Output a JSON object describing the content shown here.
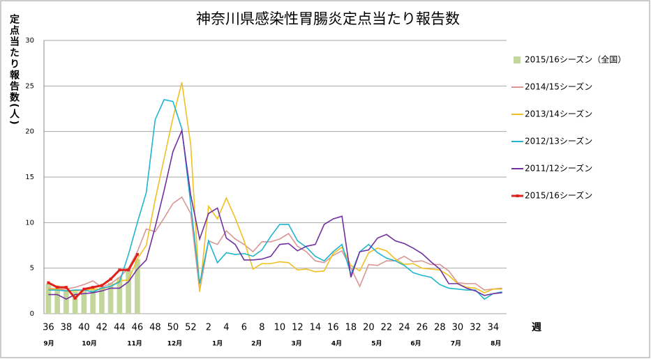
{
  "chart_data": {
    "type": "line",
    "title": "神奈川県感染性胃腸炎定点当たり報告数",
    "y_label": "定点当たり報告数(人)",
    "x_label": "週",
    "categories": [
      "36",
      null,
      "38",
      null,
      "40",
      null,
      "42",
      null,
      "44",
      null,
      "46",
      null,
      "48",
      null,
      "50",
      null,
      "52",
      null,
      "2",
      null,
      "4",
      null,
      "6",
      null,
      "8",
      null,
      "10",
      null,
      "12",
      null,
      "14",
      null,
      "16",
      null,
      "18",
      null,
      "20",
      null,
      "22",
      null,
      "24",
      null,
      "26",
      null,
      "28",
      null,
      "30",
      null,
      "32",
      null,
      "34",
      null
    ],
    "months": [
      "9月",
      "10月",
      "11月",
      "12月",
      "1月",
      "2月",
      "3月",
      "4月",
      "5月",
      "6月",
      "7月",
      "8月"
    ],
    "ylim": [
      0,
      30
    ],
    "yticks": [
      0,
      5,
      10,
      15,
      20,
      25,
      30
    ],
    "grid": true,
    "legend": "right",
    "series": [
      {
        "name": "2015/16シーズン（全国）",
        "type": "bar",
        "color": "#c3d69b",
        "values": [
          3.3,
          3.1,
          2.6,
          2.4,
          2.5,
          2.7,
          2.9,
          3.4,
          4.0,
          5.0,
          6.0,
          null,
          null,
          null,
          null,
          null,
          null,
          null,
          null,
          null,
          null,
          null,
          null,
          null,
          null,
          null,
          null,
          null,
          null,
          null,
          null,
          null,
          null,
          null,
          null,
          null,
          null,
          null,
          null,
          null,
          null,
          null,
          null,
          null,
          null,
          null,
          null,
          null,
          null,
          null,
          null,
          null
        ]
      },
      {
        "name": "2014/15シーズン",
        "type": "line",
        "color": "#d99694",
        "values": [
          2.8,
          2.7,
          2.7,
          2.9,
          3.2,
          3.6,
          2.9,
          3.3,
          4.0,
          5.0,
          6.8,
          9.3,
          9.0,
          10.5,
          12.1,
          12.8,
          11.0,
          2.5,
          8.0,
          7.6,
          9.1,
          8.2,
          7.6,
          6.8,
          7.9,
          7.9,
          8.2,
          8.8,
          7.4,
          6.8,
          5.8,
          5.6,
          6.4,
          6.9,
          5.0,
          3.0,
          5.4,
          5.3,
          5.8,
          5.8,
          6.3,
          5.7,
          5.8,
          5.4,
          5.4,
          4.7,
          3.4,
          3.3,
          3.3,
          2.6,
          2.7,
          2.8
        ]
      },
      {
        "name": "2013/14シーズン",
        "type": "line",
        "color": "#f0c020",
        "values": [
          2.7,
          2.7,
          2.5,
          2.5,
          2.6,
          2.7,
          2.7,
          3.0,
          3.6,
          3.7,
          6.0,
          7.5,
          12.5,
          17.0,
          21.5,
          25.4,
          18.5,
          2.4,
          11.8,
          10.4,
          12.7,
          10.5,
          8.0,
          4.9,
          5.5,
          5.5,
          5.7,
          5.6,
          4.8,
          4.9,
          4.6,
          4.7,
          6.6,
          7.3,
          5.3,
          4.7,
          6.7,
          7.2,
          6.9,
          6.0,
          5.4,
          5.5,
          5.0,
          4.9,
          4.8,
          4.2,
          3.3,
          2.9,
          2.8,
          2.3,
          2.7,
          2.7
        ]
      },
      {
        "name": "2012/13シーズン",
        "type": "line",
        "color": "#1fb5cf",
        "values": [
          2.6,
          2.6,
          2.5,
          2.6,
          2.6,
          2.4,
          2.8,
          3.0,
          3.5,
          6.5,
          10.0,
          13.3,
          21.3,
          23.5,
          23.3,
          20.3,
          12.0,
          3.3,
          8.0,
          5.6,
          6.7,
          6.5,
          6.6,
          6.3,
          7.0,
          8.5,
          9.8,
          9.8,
          8.0,
          7.3,
          6.3,
          5.8,
          6.8,
          7.6,
          4.3,
          6.8,
          7.6,
          6.7,
          6.1,
          5.8,
          5.3,
          4.5,
          4.2,
          4.0,
          3.2,
          2.8,
          2.7,
          2.6,
          2.6,
          1.6,
          2.2,
          2.4
        ]
      },
      {
        "name": "2011/12シーズン",
        "type": "line",
        "color": "#7030a0",
        "values": [
          2.1,
          2.1,
          1.6,
          2.1,
          2.2,
          2.3,
          2.5,
          2.8,
          2.8,
          3.5,
          4.9,
          5.9,
          9.5,
          13.5,
          17.8,
          20.1,
          13.0,
          8.2,
          11.0,
          11.6,
          8.3,
          7.6,
          5.9,
          5.9,
          6.0,
          6.3,
          7.6,
          7.7,
          6.9,
          7.4,
          7.6,
          9.8,
          10.4,
          10.7,
          4.0,
          6.8,
          7.0,
          8.3,
          8.7,
          8.0,
          7.7,
          7.2,
          6.6,
          5.7,
          4.9,
          3.3,
          3.3,
          2.8,
          2.5,
          2.0,
          2.2,
          2.3
        ]
      },
      {
        "name": "2015/16シーズン",
        "type": "line",
        "color": "#e0201b",
        "markers": true,
        "values": [
          3.4,
          2.9,
          2.9,
          1.7,
          2.7,
          2.9,
          3.1,
          3.8,
          4.8,
          4.8,
          6.5,
          null,
          null,
          null,
          null,
          null,
          null,
          null,
          null,
          null,
          null,
          null,
          null,
          null,
          null,
          null,
          null,
          null,
          null,
          null,
          null,
          null,
          null,
          null,
          null,
          null,
          null,
          null,
          null,
          null,
          null,
          null,
          null,
          null,
          null,
          null,
          null,
          null,
          null,
          null,
          null,
          null
        ]
      }
    ]
  }
}
